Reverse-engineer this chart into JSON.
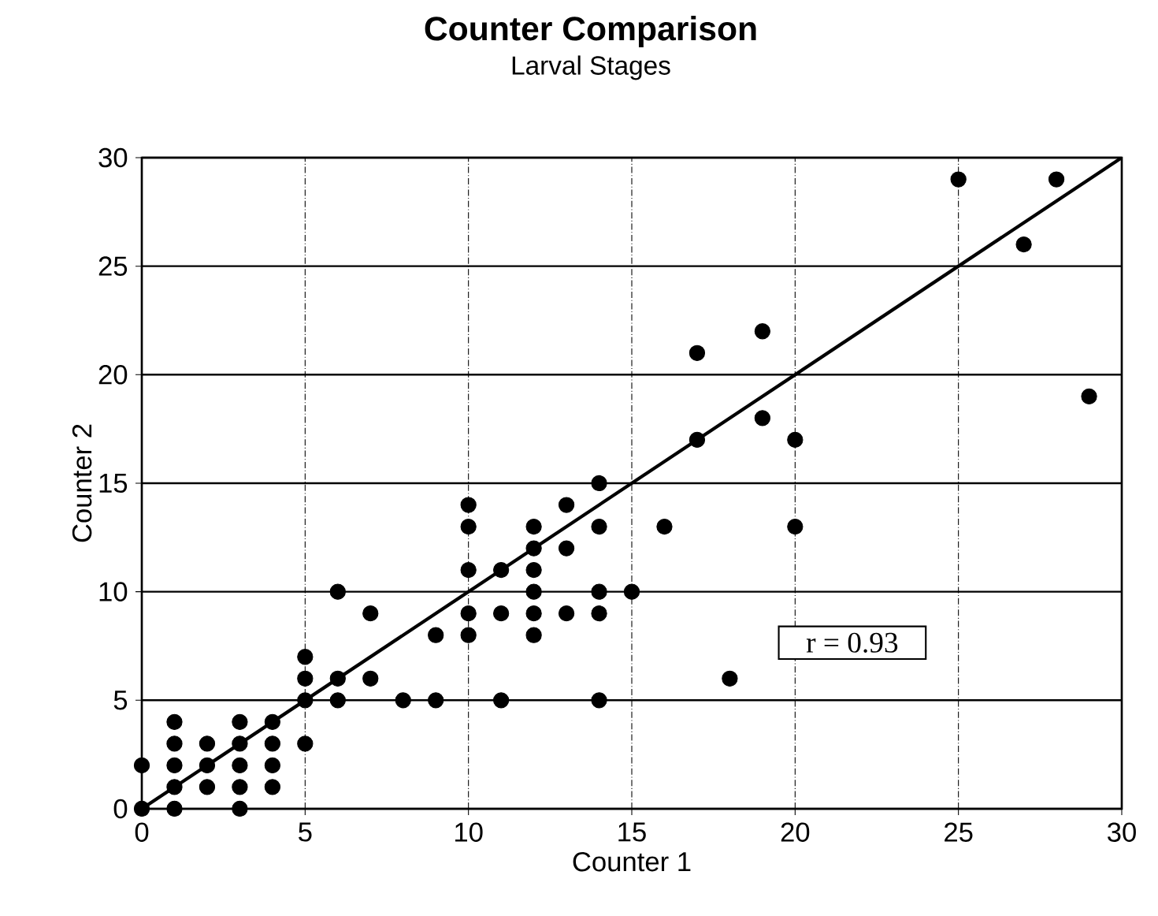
{
  "chart_data": {
    "type": "scatter",
    "title": "Counter Comparison",
    "subtitle": "Larval Stages",
    "xlabel": "Counter 1",
    "ylabel": "Counter 2",
    "xlim": [
      0,
      30
    ],
    "ylim": [
      0,
      30
    ],
    "xticks": [
      0,
      5,
      10,
      15,
      20,
      25,
      30
    ],
    "yticks": [
      0,
      5,
      10,
      15,
      20,
      25,
      30
    ],
    "grid": true,
    "marker": "circle",
    "annotations": [
      "r = 0.93"
    ],
    "series": [
      {
        "color": "#000000",
        "x": [
          0,
          0,
          1,
          1,
          1,
          1,
          1,
          2,
          2,
          2,
          3,
          3,
          3,
          3,
          3,
          4,
          4,
          4,
          4,
          5,
          5,
          5,
          5,
          6,
          6,
          6,
          7,
          7,
          8,
          9,
          9,
          10,
          10,
          10,
          10,
          10,
          11,
          11,
          11,
          12,
          12,
          12,
          12,
          12,
          12,
          13,
          13,
          13,
          14,
          14,
          14,
          14,
          14,
          15,
          16,
          17,
          17,
          18,
          19,
          19,
          20,
          20,
          25,
          27,
          28,
          29
        ],
        "values": [
          0,
          2,
          0,
          1,
          2,
          3,
          4,
          1,
          2,
          3,
          0,
          1,
          2,
          3,
          4,
          1,
          2,
          3,
          4,
          3,
          5,
          6,
          7,
          5,
          6,
          10,
          6,
          9,
          5,
          5,
          8,
          8,
          9,
          11,
          13,
          14,
          5,
          9,
          11,
          8,
          9,
          10,
          11,
          12,
          13,
          9,
          12,
          14,
          5,
          9,
          10,
          13,
          15,
          10,
          13,
          17,
          21,
          6,
          18,
          22,
          13,
          17,
          29,
          26,
          29,
          19
        ]
      },
      {
        "type": "line",
        "color": "#000000",
        "marker": "none",
        "line_style": "solid",
        "x": [
          0,
          30
        ],
        "values": [
          0,
          30
        ]
      }
    ]
  }
}
